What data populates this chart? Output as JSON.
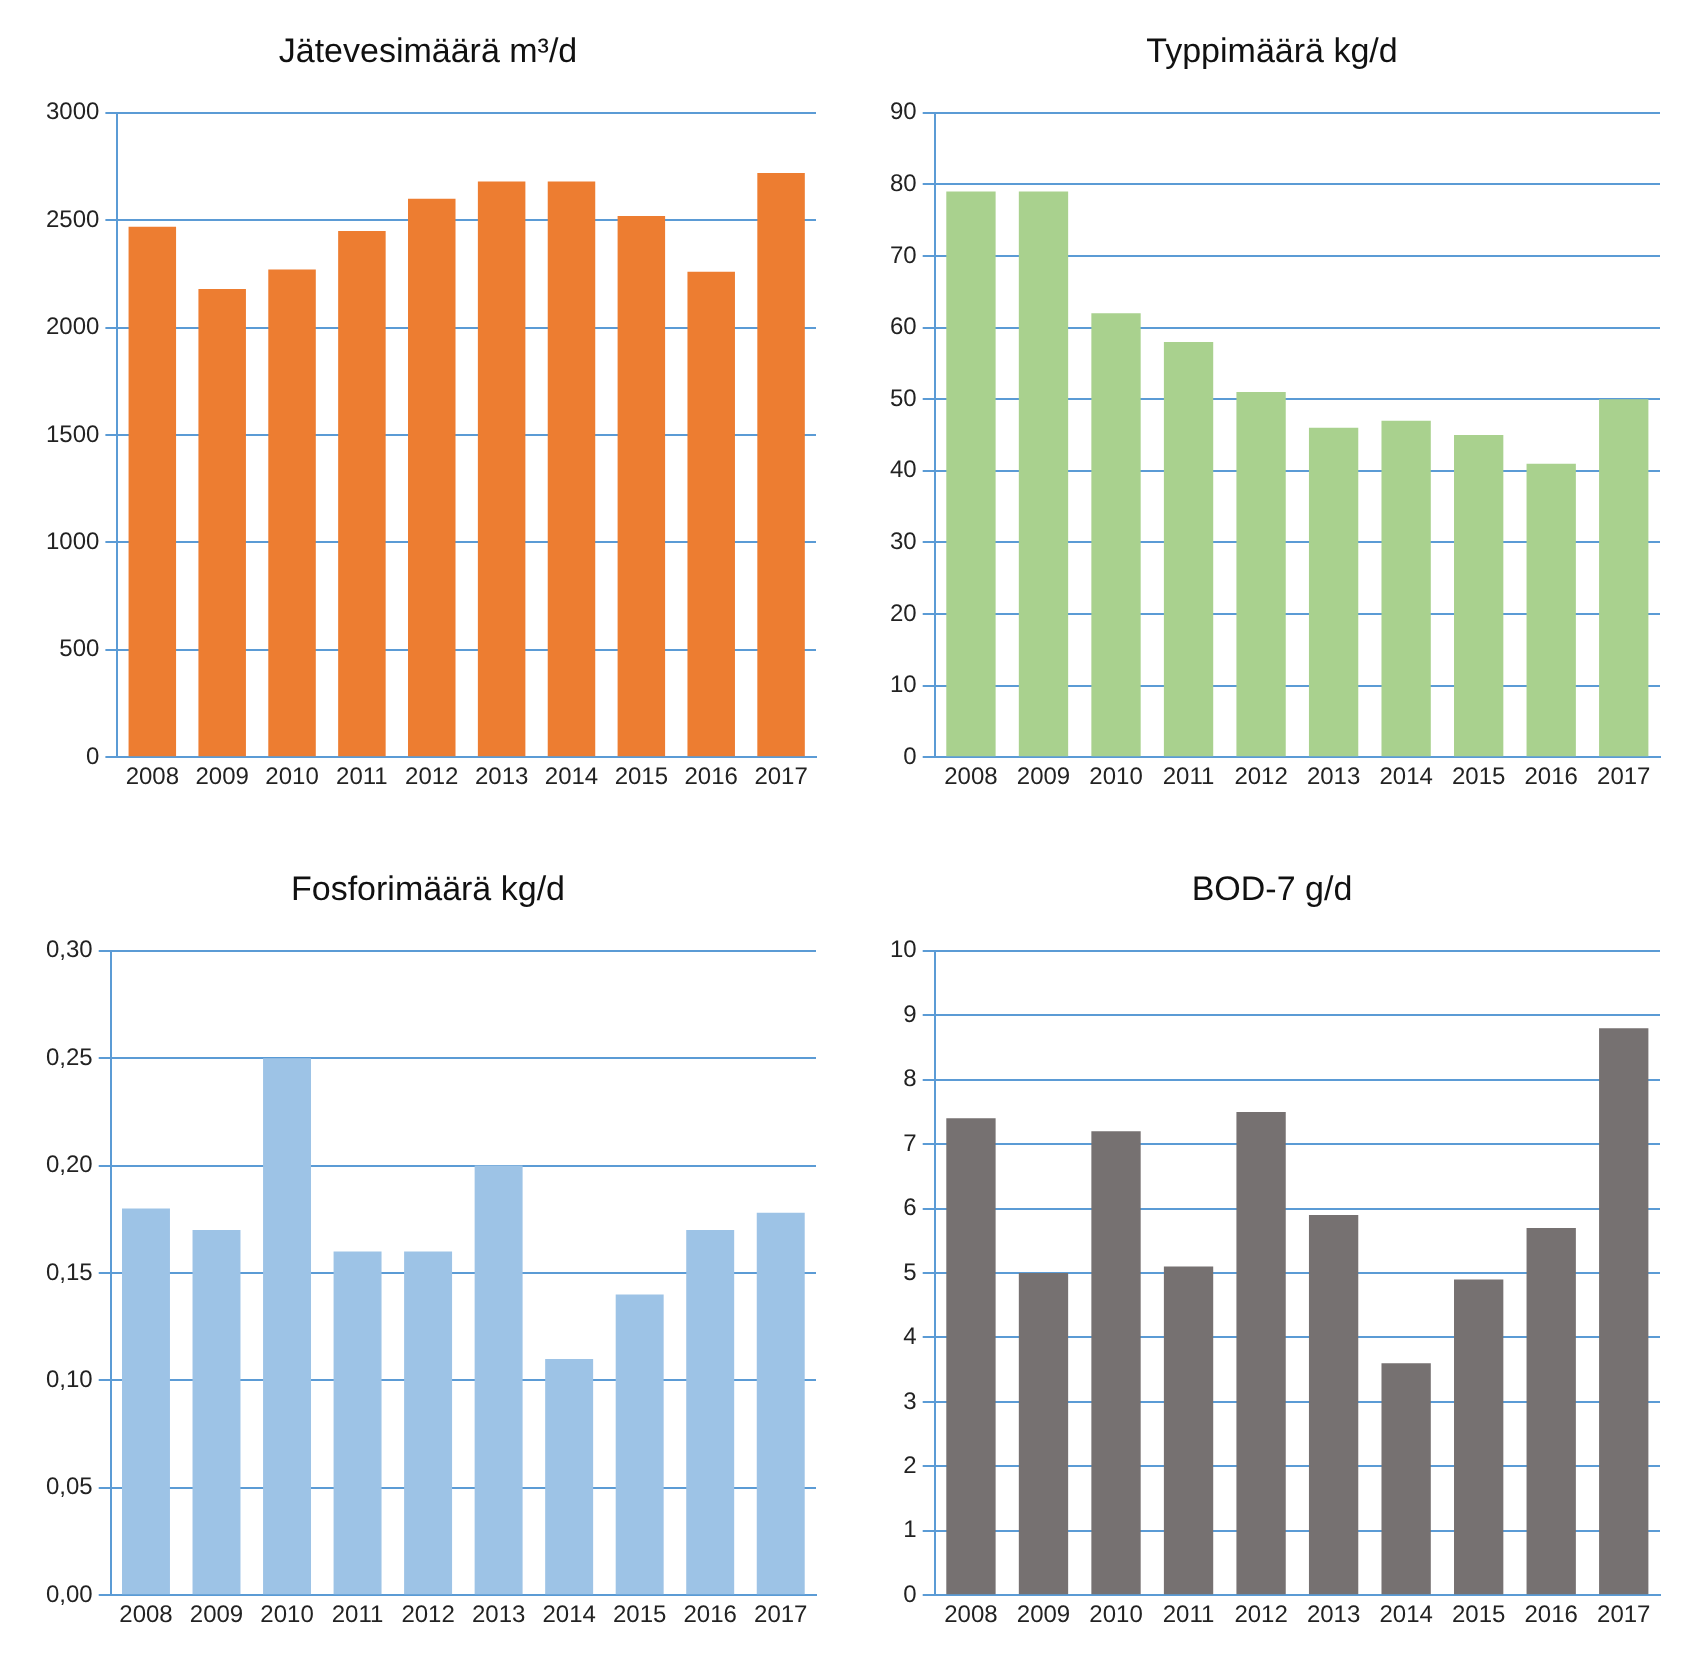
{
  "chart_data": [
    {
      "type": "bar",
      "title": "Jätevesimäärä m³/d",
      "categories": [
        "2008",
        "2009",
        "2010",
        "2011",
        "2012",
        "2013",
        "2014",
        "2015",
        "2016",
        "2017"
      ],
      "values": [
        2470,
        2180,
        2270,
        2450,
        2600,
        2680,
        2680,
        2520,
        2260,
        2720
      ],
      "color": "#ed7d31",
      "ylim": [
        0,
        3000
      ],
      "yticks": [
        0,
        500,
        1000,
        1500,
        2000,
        2500,
        3000
      ],
      "grid": "y"
    },
    {
      "type": "bar",
      "title": "Typpimäärä kg/d",
      "categories": [
        "2008",
        "2009",
        "2010",
        "2011",
        "2012",
        "2013",
        "2014",
        "2015",
        "2016",
        "2017"
      ],
      "values": [
        79,
        79,
        62,
        58,
        51,
        46,
        47,
        45,
        41,
        50
      ],
      "color": "#a9d18e",
      "ylim": [
        0,
        90
      ],
      "yticks": [
        0,
        10,
        20,
        30,
        40,
        50,
        60,
        70,
        80,
        90
      ],
      "grid": "y"
    },
    {
      "type": "bar",
      "title": "Fosforimäärä kg/d",
      "categories": [
        "2008",
        "2009",
        "2010",
        "2011",
        "2012",
        "2013",
        "2014",
        "2015",
        "2016",
        "2017"
      ],
      "values": [
        0.18,
        0.17,
        0.25,
        0.16,
        0.16,
        0.2,
        0.11,
        0.14,
        0.17,
        0.178
      ],
      "color": "#9dc3e6",
      "ylim": [
        0,
        0.3
      ],
      "yticks": [
        {
          "value": 0,
          "label": "0,00"
        },
        {
          "value": 0.05,
          "label": "0,05"
        },
        {
          "value": 0.1,
          "label": "0,10"
        },
        {
          "value": 0.15,
          "label": "0,15"
        },
        {
          "value": 0.2,
          "label": "0,20"
        },
        {
          "value": 0.25,
          "label": "0,25"
        },
        {
          "value": 0.3,
          "label": "0,30"
        }
      ],
      "grid": "y"
    },
    {
      "type": "bar",
      "title": "BOD-7 g/d",
      "categories": [
        "2008",
        "2009",
        "2010",
        "2011",
        "2012",
        "2013",
        "2014",
        "2015",
        "2016",
        "2017"
      ],
      "values": [
        7.4,
        5.0,
        7.2,
        5.1,
        7.5,
        5.9,
        3.6,
        4.9,
        5.7,
        8.8
      ],
      "color": "#767171",
      "ylim": [
        0,
        10
      ],
      "yticks": [
        0,
        1,
        2,
        3,
        4,
        5,
        6,
        7,
        8,
        9,
        10
      ],
      "grid": "y"
    }
  ]
}
